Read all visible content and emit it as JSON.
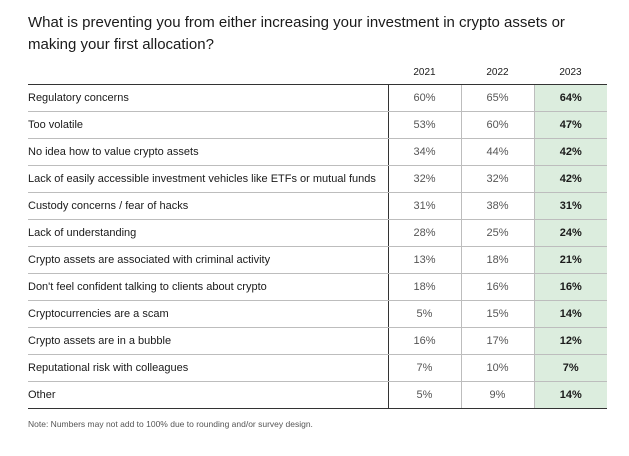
{
  "title": "What is preventing you from either increasing your investment in crypto assets or making your first allocation?",
  "note": "Note: Numbers may not add to 100% due to rounding and/or survey design.",
  "chart_data": {
    "type": "table",
    "title": "What is preventing you from either increasing your investment in crypto assets or making your first allocation?",
    "columns": [
      "2021",
      "2022",
      "2023"
    ],
    "highlight_column": "2023",
    "highlight_color": "#dcedde",
    "rows": [
      {
        "label": "Regulatory concerns",
        "values": [
          "60%",
          "65%",
          "64%"
        ]
      },
      {
        "label": "Too volatile",
        "values": [
          "53%",
          "60%",
          "47%"
        ]
      },
      {
        "label": "No idea how to value crypto assets",
        "values": [
          "34%",
          "44%",
          "42%"
        ]
      },
      {
        "label": "Lack of easily accessible investment vehicles like ETFs or mutual funds",
        "values": [
          "32%",
          "32%",
          "42%"
        ]
      },
      {
        "label": "Custody concerns / fear of hacks",
        "values": [
          "31%",
          "38%",
          "31%"
        ]
      },
      {
        "label": "Lack of understanding",
        "values": [
          "28%",
          "25%",
          "24%"
        ]
      },
      {
        "label": "Crypto assets are associated with criminal activity",
        "values": [
          "13%",
          "18%",
          "21%"
        ]
      },
      {
        "label": "Don't feel confident talking to clients about crypto",
        "values": [
          "18%",
          "16%",
          "16%"
        ]
      },
      {
        "label": "Cryptocurrencies are a scam",
        "values": [
          "5%",
          "15%",
          "14%"
        ]
      },
      {
        "label": "Crypto assets are in a bubble",
        "values": [
          "16%",
          "17%",
          "12%"
        ]
      },
      {
        "label": "Reputational risk with colleagues",
        "values": [
          "7%",
          "10%",
          "7%"
        ]
      },
      {
        "label": "Other",
        "values": [
          "5%",
          "9%",
          "14%"
        ]
      }
    ]
  }
}
